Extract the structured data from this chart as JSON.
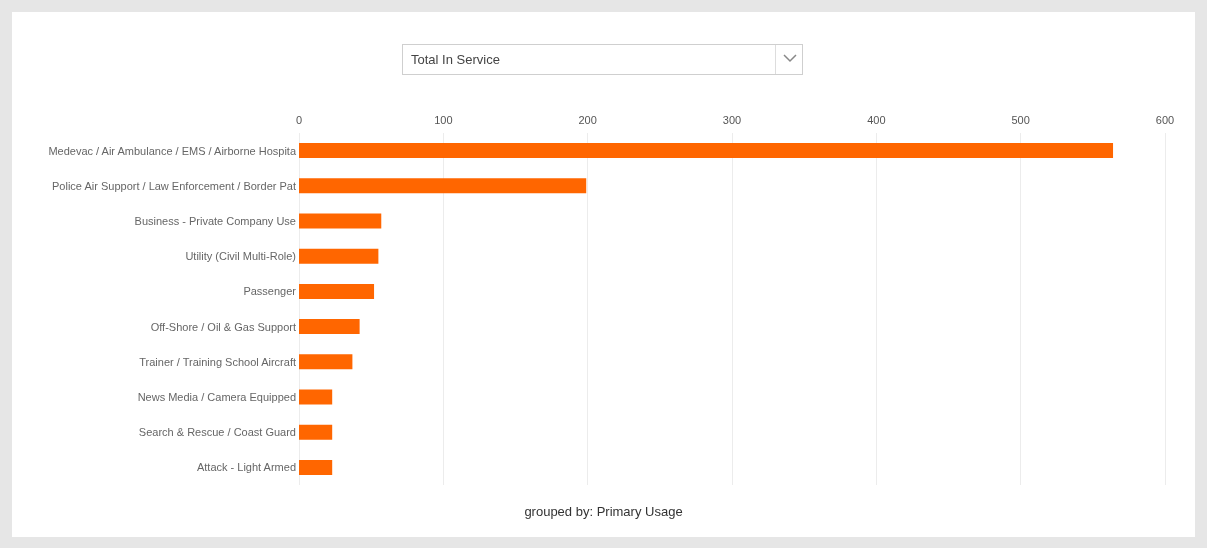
{
  "chart_data": {
    "type": "bar",
    "orientation": "horizontal",
    "title": "Total In Service",
    "xlabel": "grouped by: Primary Usage",
    "categories": [
      "Medevac / Air Ambulance / EMS / Airborne Hospita",
      "Police Air Support / Law Enforcement / Border Pat",
      "Business - Private Company Use",
      "Utility (Civil Multi-Role)",
      "Passenger",
      "Off-Shore / Oil & Gas Support",
      "Trainer / Training School Aircraft",
      "News Media / Camera Equipped",
      "Search & Rescue / Coast Guard",
      "Attack - Light Armed"
    ],
    "values": [
      564,
      199,
      57,
      55,
      52,
      42,
      37,
      23,
      23,
      23
    ],
    "color": "#ff6600",
    "xlim": [
      0,
      600
    ],
    "xticks": [
      0,
      100,
      200,
      300,
      400,
      500,
      600
    ],
    "grid": "x"
  }
}
